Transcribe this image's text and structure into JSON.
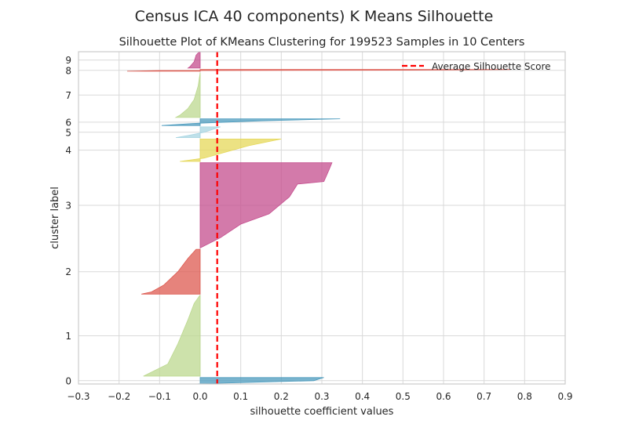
{
  "chart_data": {
    "type": "area",
    "suptitle": "Census ICA 40 components) K Means Silhouette",
    "title": "Silhouette Plot of KMeans Clustering for 199523 Samples in 10 Centers",
    "xlabel": "silhouette coefficient values",
    "ylabel": "cluster label",
    "xlim": [
      -0.3,
      0.9
    ],
    "x_ticks": [
      "−0.3",
      "−0.2",
      "−0.1",
      "0.0",
      "0.1",
      "0.2",
      "0.3",
      "0.4",
      "0.5",
      "0.6",
      "0.7",
      "0.8",
      "0.9"
    ],
    "x_tick_values": [
      -0.3,
      -0.2,
      -0.1,
      0.0,
      0.1,
      0.2,
      0.3,
      0.4,
      0.5,
      0.6,
      0.7,
      0.8,
      0.9
    ],
    "grid": true,
    "average_silhouette_score": 0.042,
    "average_line_color": "#ff0000",
    "legend": {
      "label": "Average Silhouette Score",
      "placement": "top-right"
    },
    "clusters": [
      {
        "label": "0",
        "size": 1400,
        "color": "#4c9bbd",
        "profile": [
          [
            0,
            0.305
          ],
          [
            0.5,
            0.28
          ],
          [
            1,
            -0.005
          ]
        ]
      },
      {
        "label": "1",
        "size": 18000,
        "color": "#bcd88f",
        "profile": [
          [
            0,
            -0.001
          ],
          [
            0.1,
            -0.015
          ],
          [
            0.3,
            -0.03
          ],
          [
            0.6,
            -0.055
          ],
          [
            0.85,
            -0.08
          ],
          [
            1,
            -0.14
          ]
        ]
      },
      {
        "label": "2",
        "size": 10000,
        "color": "#dd5a50",
        "profile": [
          [
            0,
            -0.01
          ],
          [
            0.2,
            -0.03
          ],
          [
            0.5,
            -0.055
          ],
          [
            0.8,
            -0.09
          ],
          [
            0.95,
            -0.12
          ],
          [
            1,
            -0.145
          ]
        ]
      },
      {
        "label": "3",
        "size": 19000,
        "color": "#c44e8e",
        "profile": [
          [
            0,
            0.325
          ],
          [
            0.08,
            0.318
          ],
          [
            0.22,
            0.305
          ],
          [
            0.25,
            0.24
          ],
          [
            0.4,
            0.22
          ],
          [
            0.6,
            0.17
          ],
          [
            0.72,
            0.1
          ],
          [
            0.88,
            0.05
          ],
          [
            1,
            0.0
          ]
        ]
      },
      {
        "label": "4",
        "size": 5000,
        "color": "#e5d85a",
        "profile": [
          [
            0,
            0.2
          ],
          [
            0.3,
            0.12
          ],
          [
            0.6,
            0.06
          ],
          [
            0.85,
            0.01
          ],
          [
            1,
            -0.05
          ]
        ]
      },
      {
        "label": "5",
        "size": 2400,
        "color": "#a8d5e2",
        "profile": [
          [
            0,
            0.05
          ],
          [
            0.5,
            0.01
          ],
          [
            0.8,
            -0.03
          ],
          [
            1,
            -0.06
          ]
        ]
      },
      {
        "label": "6",
        "size": 1500,
        "color": "#4c9bbd",
        "profile": [
          [
            0,
            0.345
          ],
          [
            0.3,
            0.15
          ],
          [
            0.7,
            -0.02
          ],
          [
            1,
            -0.095
          ]
        ]
      },
      {
        "label": "7",
        "size": 10000,
        "color": "#bcd88f",
        "profile": [
          [
            0,
            0.0
          ],
          [
            0.3,
            -0.005
          ],
          [
            0.6,
            -0.015
          ],
          [
            0.8,
            -0.03
          ],
          [
            0.95,
            -0.05
          ],
          [
            1,
            -0.06
          ]
        ]
      },
      {
        "label": "8",
        "size": 400,
        "color": "#dd5a50",
        "profile": [
          [
            0,
            0.765
          ],
          [
            0.4,
            0.5
          ],
          [
            0.6,
            -0.1
          ],
          [
            1,
            -0.18
          ]
        ]
      },
      {
        "label": "9",
        "size": 3600,
        "color": "#c44e8e",
        "profile": [
          [
            0,
            0.0
          ],
          [
            0.05,
            -0.005
          ],
          [
            0.2,
            -0.01
          ],
          [
            0.6,
            -0.015
          ],
          [
            0.9,
            -0.025
          ],
          [
            1,
            -0.03
          ]
        ]
      }
    ]
  }
}
